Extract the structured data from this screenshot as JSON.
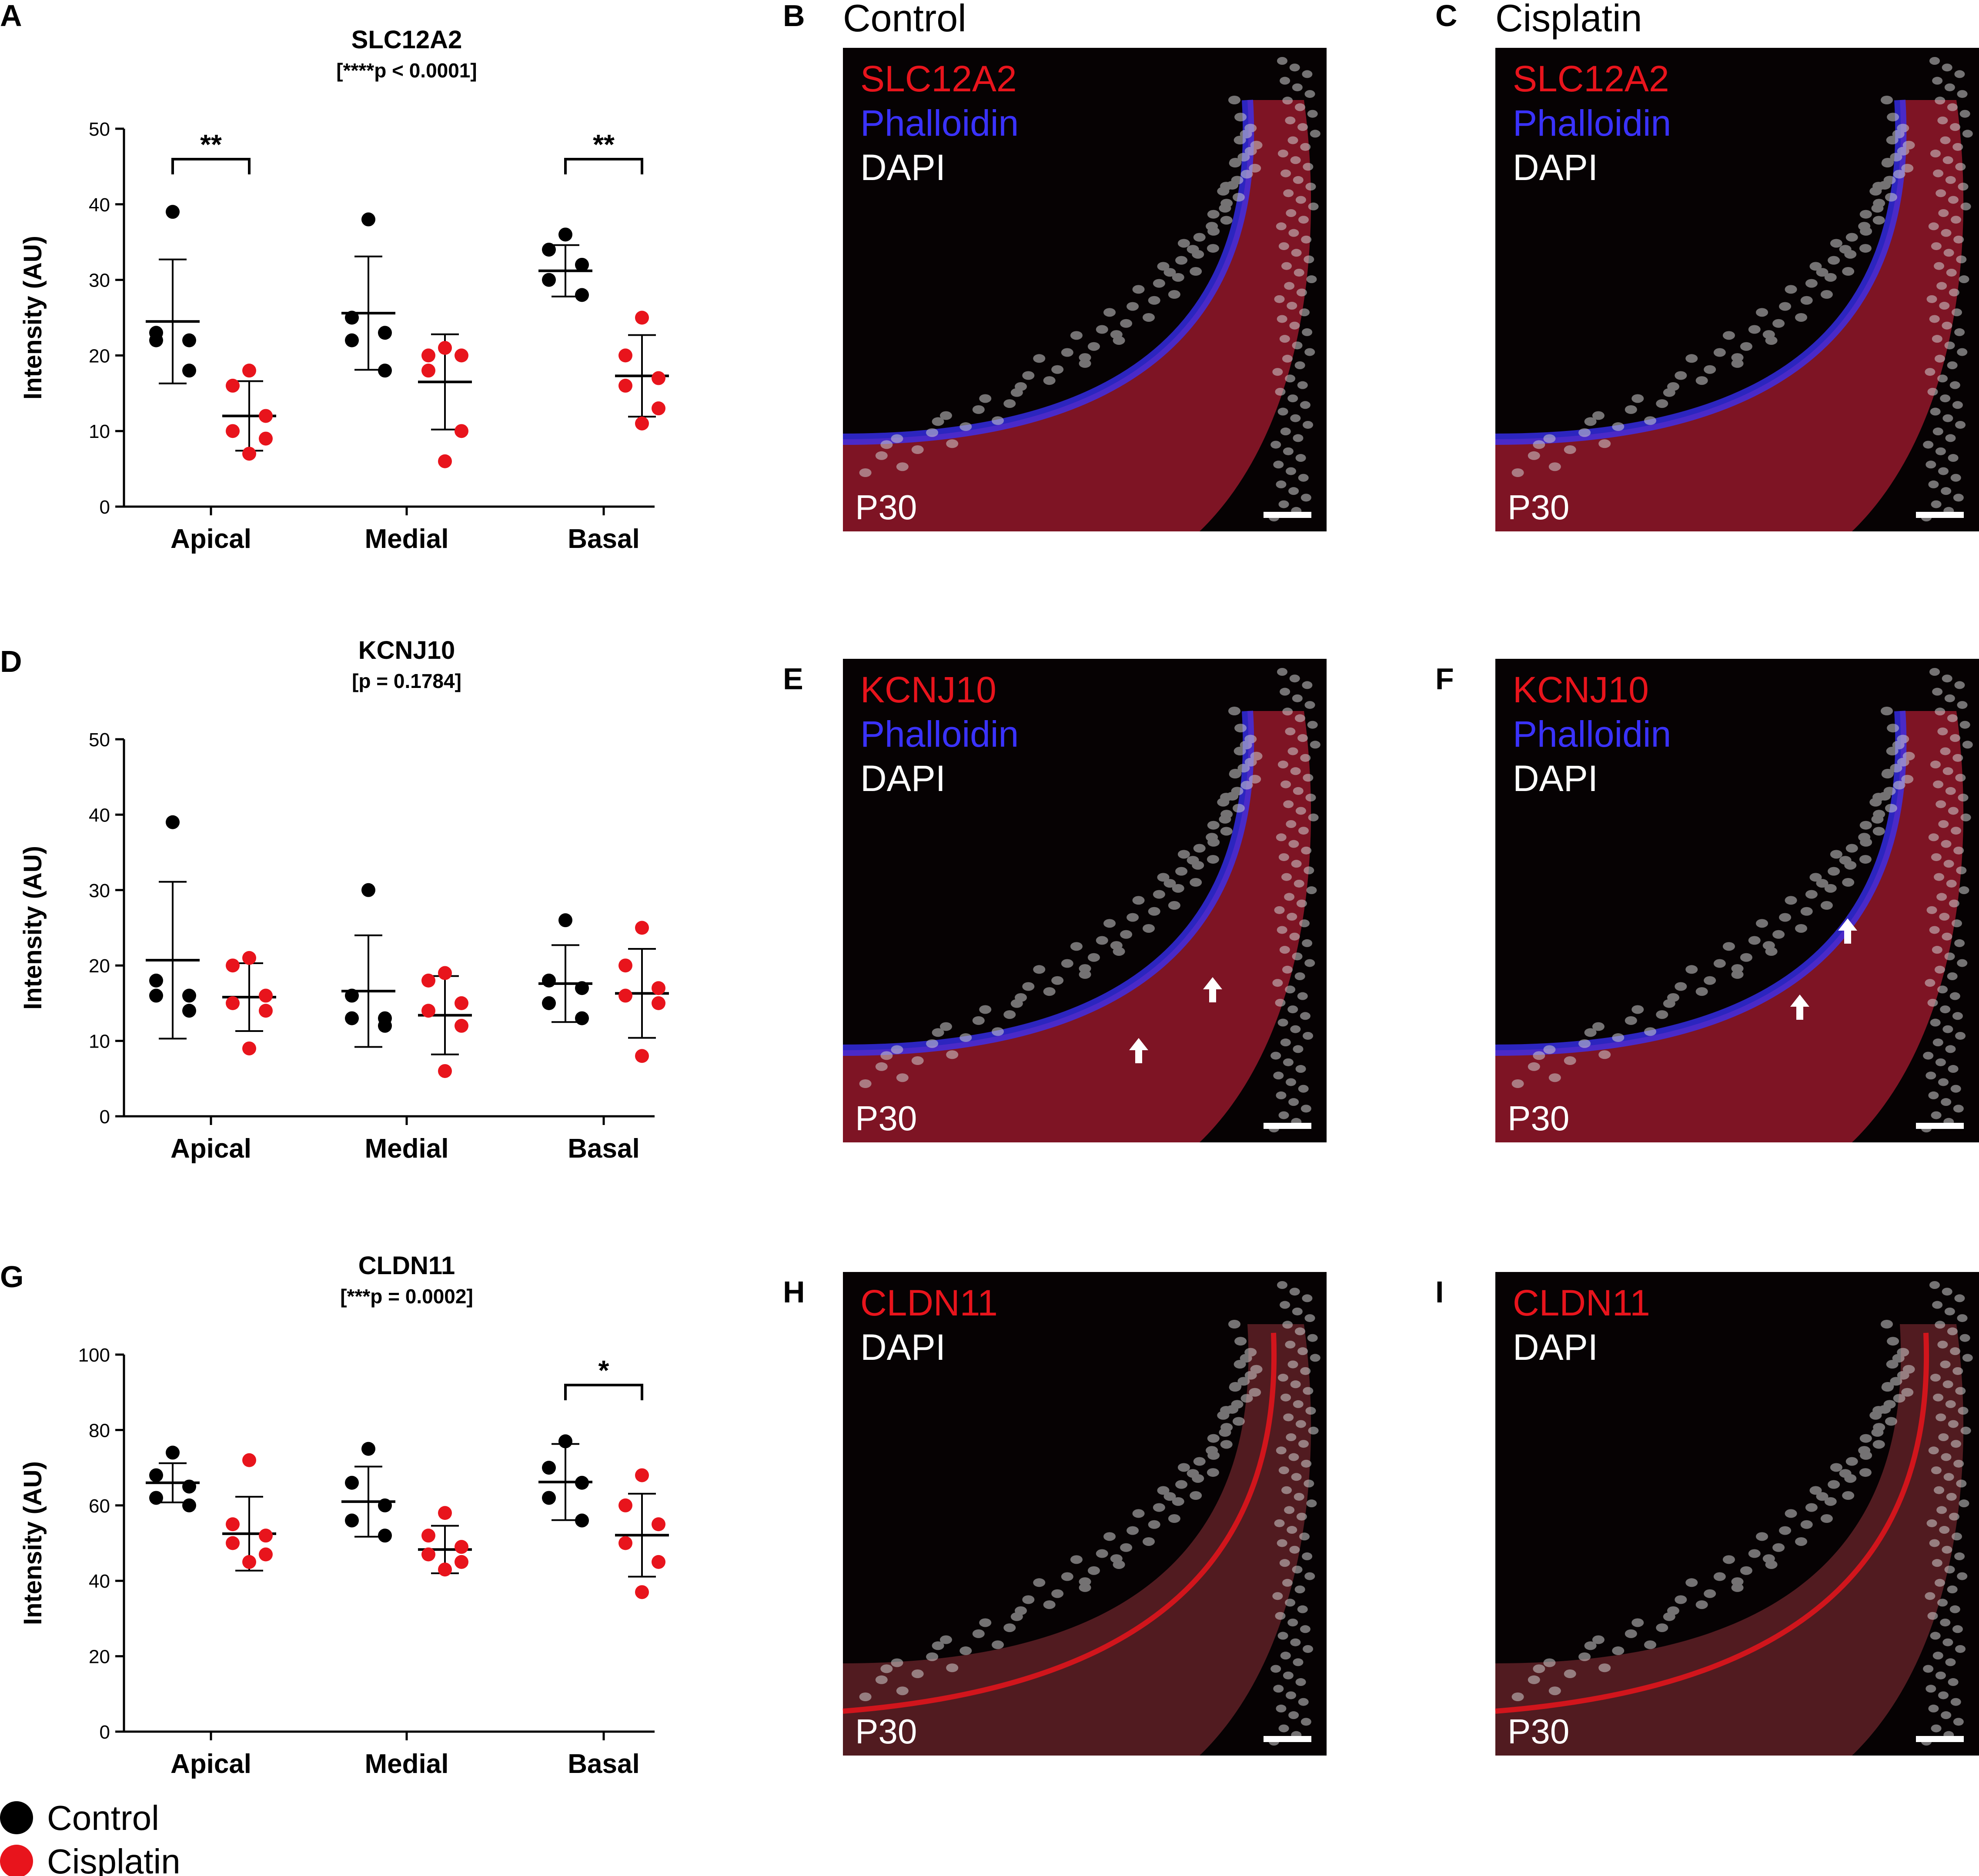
{
  "colors": {
    "control": "#000000",
    "cisplatin": "#e8141c",
    "phalloidin": "#3a32ff",
    "dapi": "#ffffff",
    "stain": "#e8141c"
  },
  "chart_data": [
    {
      "panel": "A",
      "type": "scatter",
      "title": "SLC12A2",
      "subtitle": "[****p < 0.0001]",
      "ylabel": "Intensity (AU)",
      "ylim": [
        0,
        50
      ],
      "yticks": [
        0,
        10,
        20,
        30,
        40,
        50
      ],
      "categories": [
        "Apical",
        "Medial",
        "Basal"
      ],
      "series": [
        {
          "name": "Control",
          "color": "#000000",
          "points": [
            [
              39,
              23,
              22,
              22,
              18
            ],
            [
              38,
              25,
              23,
              22,
              18
            ],
            [
              36,
              34,
              32,
              30,
              28
            ]
          ],
          "mean": [
            24.5,
            25.6,
            31.2
          ],
          "sd": [
            8.2,
            7.5,
            3.4
          ]
        },
        {
          "name": "Cisplatin",
          "color": "#e8141c",
          "points": [
            [
              18,
              16,
              12,
              10,
              9,
              7
            ],
            [
              21,
              20,
              20,
              18,
              10,
              6
            ],
            [
              25,
              20,
              17,
              16,
              13,
              11
            ]
          ],
          "mean": [
            12,
            16.5,
            17.3
          ],
          "sd": [
            4.6,
            6.3,
            5.4
          ]
        }
      ],
      "significance": [
        {
          "category": "Apical",
          "label": "**"
        },
        {
          "category": "Basal",
          "label": "**"
        }
      ]
    },
    {
      "panel": "D",
      "type": "scatter",
      "title": "KCNJ10",
      "subtitle": "[p = 0.1784]",
      "ylabel": "Intensity (AU)",
      "ylim": [
        0,
        50
      ],
      "yticks": [
        0,
        10,
        20,
        30,
        40,
        50
      ],
      "categories": [
        "Apical",
        "Medial",
        "Basal"
      ],
      "series": [
        {
          "name": "Control",
          "color": "#000000",
          "points": [
            [
              39,
              18,
              16,
              16,
              14
            ],
            [
              30,
              16,
              13,
              13,
              12
            ],
            [
              26,
              18,
              17,
              15,
              13
            ]
          ],
          "mean": [
            20.7,
            16.6,
            17.6
          ],
          "sd": [
            10.4,
            7.4,
            5.1
          ]
        },
        {
          "name": "Cisplatin",
          "color": "#e8141c",
          "points": [
            [
              21,
              20,
              16,
              15,
              14,
              9
            ],
            [
              19,
              18,
              15,
              14,
              12,
              6
            ],
            [
              25,
              20,
              17,
              16,
              15,
              8
            ]
          ],
          "mean": [
            15.8,
            13.4,
            16.3
          ],
          "sd": [
            4.5,
            5.2,
            5.9
          ]
        }
      ],
      "significance": []
    },
    {
      "panel": "G",
      "type": "scatter",
      "title": "CLDN11",
      "subtitle": "[***p = 0.0002]",
      "ylabel": "Intensity (AU)",
      "ylim": [
        0,
        100
      ],
      "yticks": [
        0,
        20,
        40,
        60,
        80,
        100
      ],
      "categories": [
        "Apical",
        "Medial",
        "Basal"
      ],
      "series": [
        {
          "name": "Control",
          "color": "#000000",
          "points": [
            [
              74,
              68,
              65,
              62,
              60
            ],
            [
              75,
              66,
              60,
              56,
              52
            ],
            [
              77,
              70,
              66,
              62,
              56
            ]
          ],
          "mean": [
            66,
            61,
            66.2
          ],
          "sd": [
            5.2,
            9.3,
            10.1
          ]
        },
        {
          "name": "Cisplatin",
          "color": "#e8141c",
          "points": [
            [
              72,
              55,
              52,
              50,
              47,
              45
            ],
            [
              58,
              52,
              49,
              47,
              45,
              43
            ],
            [
              68,
              60,
              55,
              50,
              45,
              37
            ]
          ],
          "mean": [
            52.5,
            48.3,
            52.1
          ],
          "sd": [
            9.8,
            6.3,
            11
          ]
        }
      ],
      "significance": [
        {
          "category": "Basal",
          "label": "*"
        }
      ]
    }
  ],
  "legend": [
    {
      "label": "Control",
      "color": "#000000"
    },
    {
      "label": "Cisplatin",
      "color": "#e8141c"
    }
  ],
  "images": [
    {
      "panel": "B",
      "header": "Control",
      "labels": [
        "SLC12A2",
        "Phalloidin",
        "DAPI"
      ],
      "age": "P30",
      "arrows": 0
    },
    {
      "panel": "C",
      "header": "Cisplatin",
      "labels": [
        "SLC12A2",
        "Phalloidin",
        "DAPI"
      ],
      "age": "P30",
      "arrows": 0
    },
    {
      "panel": "E",
      "header": "",
      "labels": [
        "KCNJ10",
        "Phalloidin",
        "DAPI"
      ],
      "age": "P30",
      "arrows": 2
    },
    {
      "panel": "F",
      "header": "",
      "labels": [
        "KCNJ10",
        "Phalloidin",
        "DAPI"
      ],
      "age": "P30",
      "arrows": 2
    },
    {
      "panel": "H",
      "header": "",
      "labels": [
        "CLDN11",
        "DAPI"
      ],
      "age": "P30",
      "arrows": 0
    },
    {
      "panel": "I",
      "header": "",
      "labels": [
        "CLDN11",
        "DAPI"
      ],
      "age": "P30",
      "arrows": 0
    }
  ]
}
